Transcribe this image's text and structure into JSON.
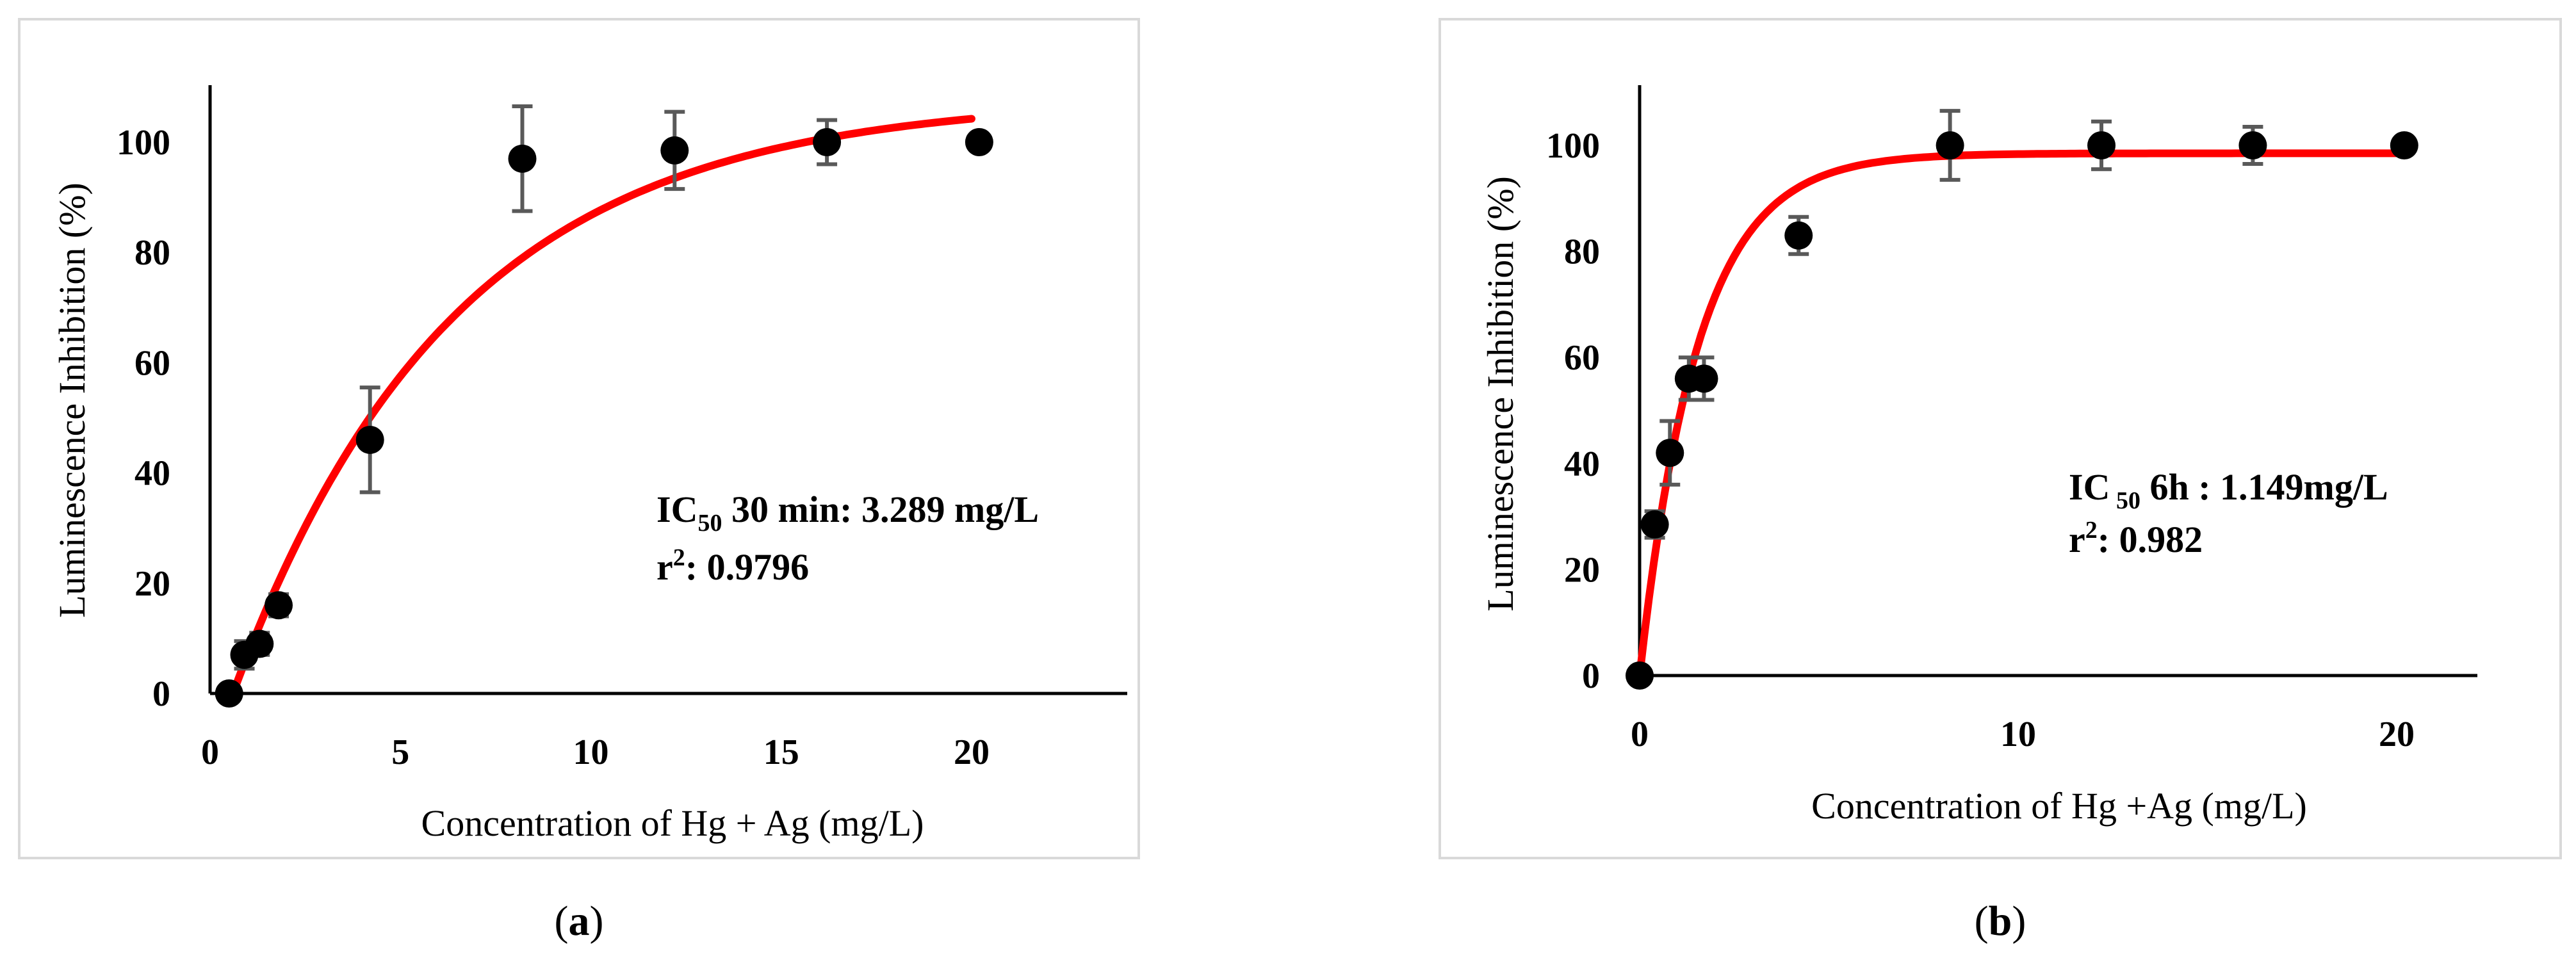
{
  "chart_data": [
    {
      "type": "scatter",
      "panel_label": "a",
      "xlabel": "Concentration of Hg + Ag  (mg/L)",
      "ylabel": "Luminescence Inhibition (%)",
      "xlim": [
        0,
        24
      ],
      "ylim": [
        0,
        110
      ],
      "xticks": [
        0,
        5,
        10,
        15,
        20
      ],
      "yticks": [
        0,
        20,
        40,
        60,
        80,
        100
      ],
      "points": [
        {
          "x": 0.5,
          "y": 0,
          "err": 0
        },
        {
          "x": 0.9,
          "y": 7,
          "err": 2.5
        },
        {
          "x": 1.3,
          "y": 9,
          "err": 2
        },
        {
          "x": 1.8,
          "y": 16,
          "err": 2
        },
        {
          "x": 4.2,
          "y": 46,
          "err": 9.5
        },
        {
          "x": 8.2,
          "y": 97,
          "err": 9.5
        },
        {
          "x": 12.2,
          "y": 98.5,
          "err": 7
        },
        {
          "x": 16.2,
          "y": 100,
          "err": 4
        },
        {
          "x": 20.2,
          "y": 100,
          "err": 0
        }
      ],
      "fit": {
        "model": "1 - exp",
        "a": 108,
        "b": 0.173,
        "c": 0.6,
        "xmin": 0.6,
        "xmax": 20.0
      },
      "annotation": {
        "prefix": "IC",
        "sub": "50",
        "suffix": " 30 min: 3.289 mg/L",
        "r2_prefix": "r",
        "r2_sup": "2",
        "r2_suffix": ": 0.9796"
      },
      "colors": {
        "fit": "#ff0000",
        "points": "#000000",
        "errorbars": "#595959"
      }
    },
    {
      "type": "scatter",
      "panel_label": "b",
      "xlabel": "Concentration of Hg +Ag  (mg/L)",
      "ylabel": "Luminescence Inhibition (%)",
      "xlim": [
        0,
        22
      ],
      "ylim": [
        0,
        110
      ],
      "xticks": [
        0,
        10,
        20
      ],
      "yticks": [
        0,
        20,
        40,
        60,
        80,
        100
      ],
      "points": [
        {
          "x": 0,
          "y": 0,
          "err": 0
        },
        {
          "x": 0.4,
          "y": 28.5,
          "err": 2.5
        },
        {
          "x": 0.8,
          "y": 42,
          "err": 6
        },
        {
          "x": 1.3,
          "y": 56,
          "err": 4
        },
        {
          "x": 1.7,
          "y": 56,
          "err": 4
        },
        {
          "x": 4.2,
          "y": 83,
          "err": 3.5
        },
        {
          "x": 8.2,
          "y": 100,
          "err": 6.5
        },
        {
          "x": 12.2,
          "y": 100,
          "err": 4.5
        },
        {
          "x": 16.2,
          "y": 100,
          "err": 3.5
        },
        {
          "x": 20.2,
          "y": 100,
          "err": 0
        }
      ],
      "fit": {
        "model": "1 - exp",
        "a": 98.5,
        "b": 0.65,
        "c": 0.0,
        "xmin": 0.0,
        "xmax": 20.0
      },
      "annotation": {
        "prefix": "IC",
        "sub": " 50",
        "suffix": " 6h : 1.149mg/L",
        "r2_prefix": "r",
        "r2_sup": "2",
        "r2_suffix": ": 0.982"
      },
      "colors": {
        "fit": "#ff0000",
        "points": "#000000",
        "errorbars": "#595959"
      }
    }
  ]
}
